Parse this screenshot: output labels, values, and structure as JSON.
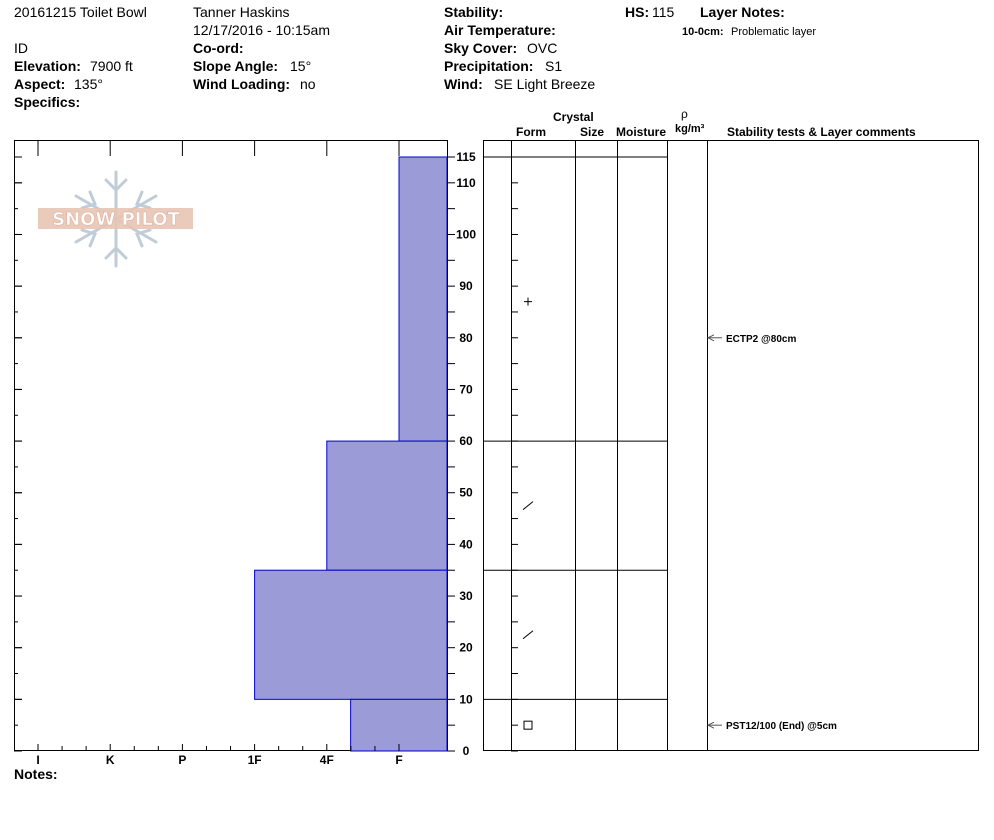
{
  "header": {
    "pit_name": "20161215 Toilet Bowl",
    "observer": "Tanner Haskins",
    "datetime": "12/17/2016 - 10:15am",
    "state": "ID",
    "elevation_label": "Elevation:",
    "elevation_value": "7900 ft",
    "aspect_label": "Aspect:",
    "aspect_value": "135°",
    "specifics_label": "Specifics:",
    "coord_label": "Co-ord:",
    "slope_label": "Slope Angle:",
    "slope_value": "15°",
    "wind_loading_label": "Wind Loading:",
    "wind_loading_value": "no",
    "stability_label": "Stability:",
    "air_temp_label": "Air Temperature:",
    "sky_cover_label": "Sky Cover:",
    "sky_cover_value": "OVC",
    "precip_label": "Precipitation:",
    "precip_value": "S1",
    "wind_label": "Wind:",
    "wind_value": "SE  Light Breeze",
    "hs_label": "HS:",
    "hs_value": "115",
    "layer_notes_label": "Layer Notes:",
    "layer_note_range": "10-0cm:",
    "layer_note_text": "Problematic layer"
  },
  "logo": {
    "text": "SNOW PILOT"
  },
  "columns": {
    "crystal": "Crystal",
    "form": "Form",
    "size": "Size",
    "moisture": "Moisture",
    "rho": "ρ",
    "density_unit": "kg/m³",
    "stability": "Stability tests & Layer comments"
  },
  "notes_label": "Notes:",
  "colors": {
    "hardness_fill": "#9b9bd7",
    "hardness_stroke": "#0000cc",
    "arrow": "#555555"
  },
  "chart_data": {
    "type": "bar",
    "title": "",
    "xlabel": "",
    "ylabel": "",
    "x_categories": [
      "I",
      "K",
      "P",
      "1F",
      "4F",
      "F"
    ],
    "ylim": [
      0,
      115
    ],
    "y_ticks": [
      0,
      10,
      20,
      30,
      40,
      50,
      60,
      70,
      80,
      90,
      100,
      110,
      115
    ],
    "layers": [
      {
        "top": 115,
        "bottom": 60,
        "hardness_index": 5,
        "form_symbol": "+",
        "form_at": 87
      },
      {
        "top": 60,
        "bottom": 35,
        "hardness_index": 4,
        "form_symbol": "/",
        "form_at": 47.5
      },
      {
        "top": 35,
        "bottom": 10,
        "hardness_index": 3,
        "form_symbol": "/",
        "form_at": 22.5
      },
      {
        "top": 10,
        "bottom": 0,
        "hardness_index": 4.33,
        "form_symbol": "□",
        "form_at": 5
      }
    ],
    "stability_tests": [
      {
        "depth": 80,
        "text": "ECTP2 @80cm"
      },
      {
        "depth": 5,
        "text": "PST12/100 (End) @5cm"
      }
    ]
  }
}
